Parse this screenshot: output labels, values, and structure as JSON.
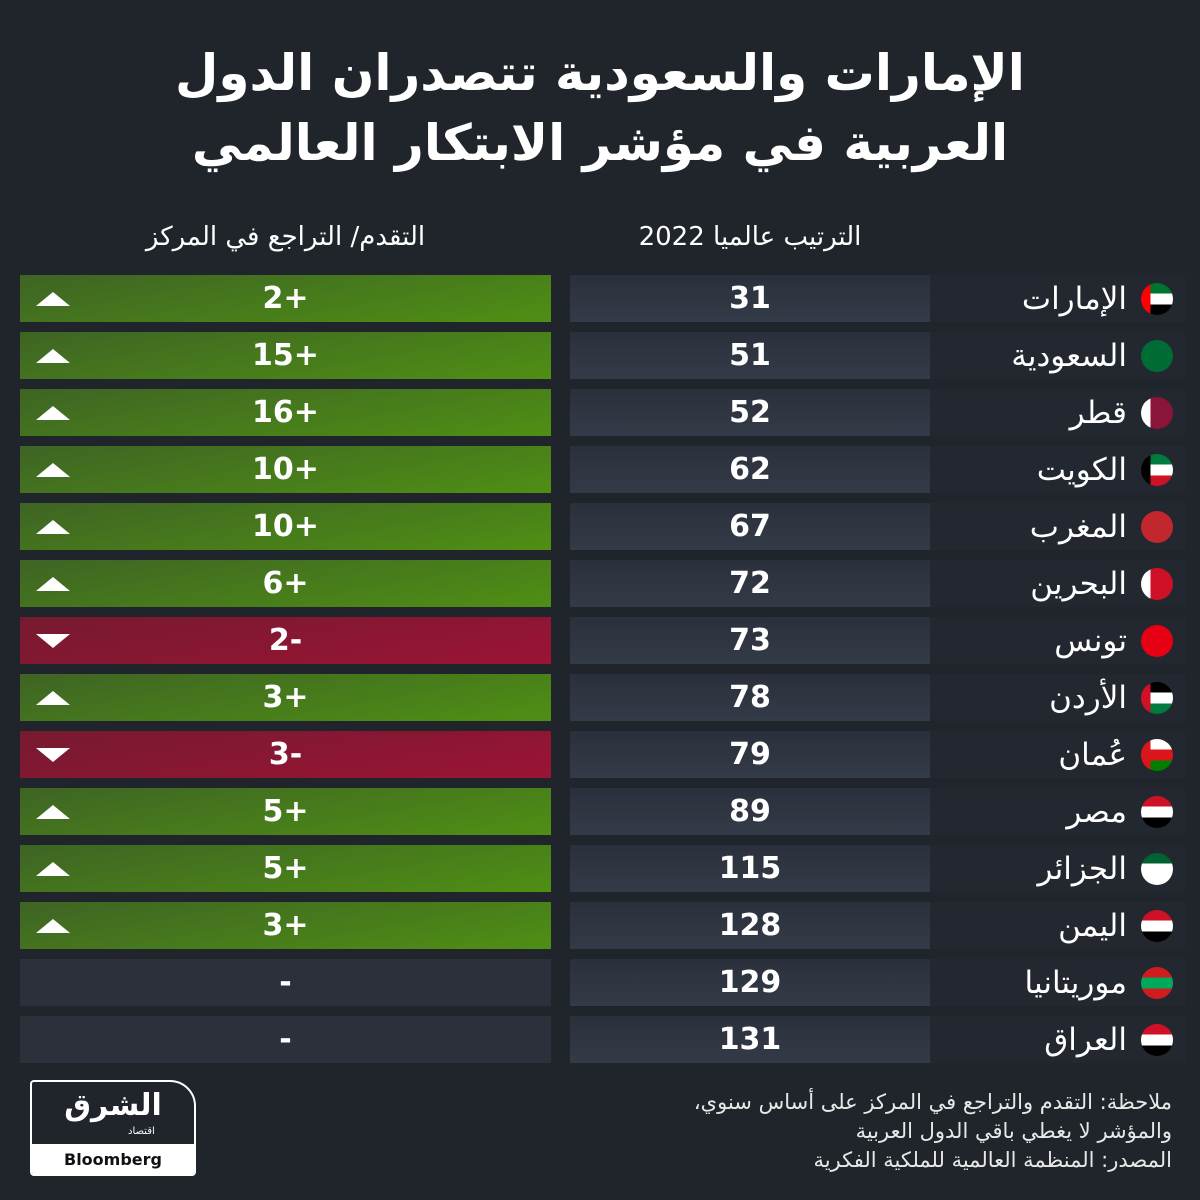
{
  "title": {
    "line1": "الإمارات والسعودية تتصدران الدول",
    "line2": "العربية في مؤشر الابتكار العالمي"
  },
  "chart_data": {
    "type": "table",
    "columns": [
      "التقدم/ التراجع في المركز",
      "الترتيب عالميا 2022",
      ""
    ],
    "rows": [
      {
        "country": "الإمارات",
        "rank": "31",
        "change": "2+",
        "dir": "up",
        "flag": [
          "#00732f",
          "#ffffff",
          "#000000"
        ],
        "hoist": "#ff0000"
      },
      {
        "country": "السعودية",
        "rank": "51",
        "change": "15+",
        "dir": "up",
        "flag": [
          "#006c35",
          "#006c35",
          "#006c35"
        ],
        "hoist": ""
      },
      {
        "country": "قطر",
        "rank": "52",
        "change": "16+",
        "dir": "up",
        "flag": [
          "#8a1538",
          "#8a1538",
          "#8a1538"
        ],
        "hoist": "#ffffff"
      },
      {
        "country": "الكويت",
        "rank": "62",
        "change": "10+",
        "dir": "up",
        "flag": [
          "#007a3d",
          "#ffffff",
          "#ce1126"
        ],
        "hoist": "#000000"
      },
      {
        "country": "المغرب",
        "rank": "67",
        "change": "10+",
        "dir": "up",
        "flag": [
          "#c1272d",
          "#c1272d",
          "#c1272d"
        ],
        "hoist": ""
      },
      {
        "country": "البحرين",
        "rank": "72",
        "change": "6+",
        "dir": "up",
        "flag": [
          "#ce1126",
          "#ce1126",
          "#ce1126"
        ],
        "hoist": "#ffffff"
      },
      {
        "country": "تونس",
        "rank": "73",
        "change": "2-",
        "dir": "down",
        "flag": [
          "#e70013",
          "#e70013",
          "#e70013"
        ],
        "hoist": ""
      },
      {
        "country": "الأردن",
        "rank": "78",
        "change": "3+",
        "dir": "up",
        "flag": [
          "#000000",
          "#ffffff",
          "#007a3d"
        ],
        "hoist": "#ce1126"
      },
      {
        "country": "عُمان",
        "rank": "79",
        "change": "3-",
        "dir": "down",
        "flag": [
          "#ffffff",
          "#db161b",
          "#008000"
        ],
        "hoist": "#db161b"
      },
      {
        "country": "مصر",
        "rank": "89",
        "change": "5+",
        "dir": "up",
        "flag": [
          "#ce1126",
          "#ffffff",
          "#000000"
        ],
        "hoist": ""
      },
      {
        "country": "الجزائر",
        "rank": "115",
        "change": "5+",
        "dir": "up",
        "flag": [
          "#006233",
          "#ffffff",
          "#ffffff"
        ],
        "hoist": ""
      },
      {
        "country": "اليمن",
        "rank": "128",
        "change": "3+",
        "dir": "up",
        "flag": [
          "#ce1126",
          "#ffffff",
          "#000000"
        ],
        "hoist": ""
      },
      {
        "country": "موريتانيا",
        "rank": "129",
        "change": "-",
        "dir": "none",
        "flag": [
          "#d01c1f",
          "#00a95c",
          "#d01c1f"
        ],
        "hoist": ""
      },
      {
        "country": "العراق",
        "rank": "131",
        "change": "-",
        "dir": "none",
        "flag": [
          "#ce1126",
          "#ffffff",
          "#000000"
        ],
        "hoist": ""
      }
    ]
  },
  "footer": {
    "note_line1": "ملاحظة: التقدم والتراجع في المركز على أساس سنوي،",
    "note_line2": "والمؤشر لا يغطي باقي الدول العربية",
    "source": "المصدر: المنظمة العالمية للملكية الفكرية"
  },
  "logo": {
    "arabic": "الشرق",
    "sub": "اقتصاد",
    "bloomberg": "Bloomberg"
  },
  "colors": {
    "background": "#20242b",
    "up": "#4f8f14",
    "down": "#9b1434"
  }
}
